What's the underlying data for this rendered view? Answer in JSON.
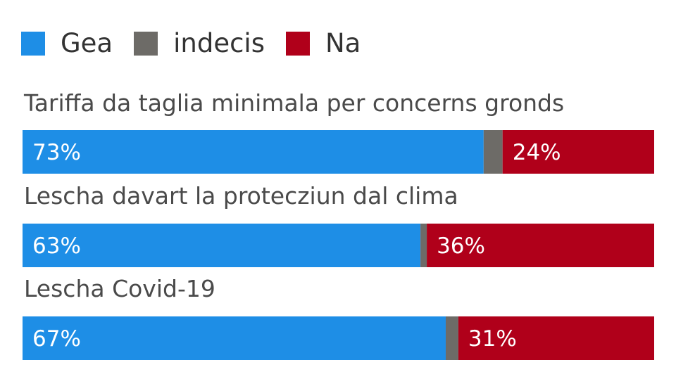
{
  "chart_data": {
    "type": "bar",
    "orientation": "horizontal",
    "stacked": true,
    "legend_placement": "top-left",
    "legend": [
      {
        "name": "Gea",
        "color": "#1e8ee6"
      },
      {
        "name": "indecis",
        "color": "#6d6b67"
      },
      {
        "name": "Na",
        "color": "#b0001a"
      }
    ],
    "categories": [
      "Tariffa da taglia minimala per concerns gronds",
      "Lescha davart la protecziun dal clima",
      "Lescha Covid-19"
    ],
    "series": [
      {
        "name": "Gea",
        "values": [
          73,
          63,
          67
        ],
        "labels": [
          "73%",
          "63%",
          "67%"
        ]
      },
      {
        "name": "indecis",
        "values": [
          3,
          1,
          2
        ],
        "labels": [
          "",
          "",
          ""
        ]
      },
      {
        "name": "Na",
        "values": [
          24,
          36,
          31
        ],
        "labels": [
          "24%",
          "36%",
          "31%"
        ]
      }
    ],
    "xlim": [
      0,
      100
    ],
    "grid": false
  }
}
